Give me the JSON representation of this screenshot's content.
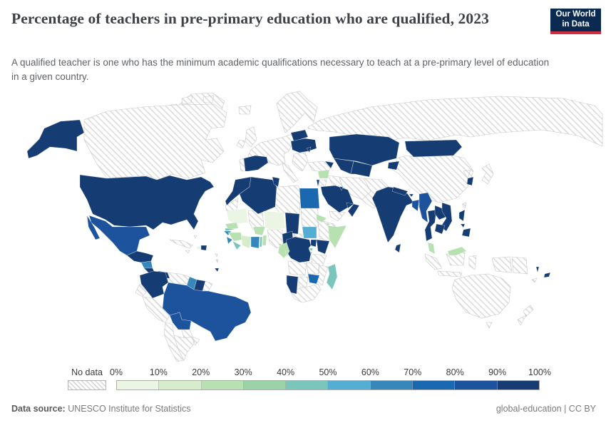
{
  "header": {
    "title": "Percentage of teachers in pre-primary education who are qualified, 2023",
    "subtitle": "A qualified teacher is one who has the minimum academic qualifications necessary to teach at a pre-primary level of education in a given country.",
    "logo": {
      "line1": "Our World",
      "line2": "in Data",
      "bg": "#0b2a52",
      "accent": "#cf2d41"
    }
  },
  "legend": {
    "no_data_label": "No data",
    "tick_labels": [
      "0%",
      "10%",
      "20%",
      "30%",
      "40%",
      "50%",
      "60%",
      "70%",
      "80%",
      "90%",
      "100%"
    ],
    "bands": [
      {
        "range": "0-10%",
        "color": "#eaf5e3"
      },
      {
        "range": "10-20%",
        "color": "#d6ecca"
      },
      {
        "range": "20-30%",
        "color": "#b7e1b1"
      },
      {
        "range": "30-40%",
        "color": "#99d3a7"
      },
      {
        "range": "40-50%",
        "color": "#7bc6bc"
      },
      {
        "range": "50-60%",
        "color": "#54add2"
      },
      {
        "range": "60-70%",
        "color": "#3887ba"
      },
      {
        "range": "70-80%",
        "color": "#1a68b0"
      },
      {
        "range": "80-90%",
        "color": "#1d539c"
      },
      {
        "range": "90-100%",
        "color": "#163d73"
      }
    ]
  },
  "footer": {
    "source_label": "Data source:",
    "source_value": " UNESCO Institute for Statistics",
    "right_text": "global-education | CC BY"
  },
  "chart_data": {
    "type": "heatmap",
    "subtype": "choropleth world map",
    "title": "Percentage of teachers in pre-primary education who are qualified, 2023",
    "unit": "% of pre-primary teachers qualified",
    "year": 2023,
    "scale": {
      "min": 0,
      "max": 100,
      "step": 10
    },
    "no_data_style": "white fill with light gray diagonal hatching",
    "note": "Country values read from map colors as 10-point bands",
    "regions": {
      "United States": "90-100%",
      "Guatemala": "90-100%",
      "Belize": "90-100%",
      "Honduras": "90-100%",
      "El Salvador": "90-100%",
      "Costa Rica": "90-100%",
      "Panama": "90-100%",
      "Dominican Republic": "90-100%",
      "Trinidad and Tobago": "90-100%",
      "Colombia": "90-100%",
      "Suriname": "90-100%",
      "Spain": "90-100%",
      "Ukraine": "90-100%",
      "Belarus": "90-100%",
      "Moldova": "90-100%",
      "Azerbaijan": "90-100%",
      "Israel": "90-100%",
      "Morocco": "90-100%",
      "Algeria": "90-100%",
      "Tunisia": "90-100%",
      "Chad": "90-100%",
      "Cameroon": "90-100%",
      "DR Congo": "90-100%",
      "Uganda": "90-100%",
      "Kenya": "90-100%",
      "Namibia": "90-100%",
      "Saudi Arabia": "90-100%",
      "Oman": "90-100%",
      "United Arab Emirates": "90-100%",
      "Kuwait": "90-100%",
      "Kazakhstan": "90-100%",
      "Uzbekistan": "90-100%",
      "Turkmenistan": "90-100%",
      "Kyrgyzstan": "90-100%",
      "Mongolia": "90-100%",
      "India": "90-100%",
      "Nepal": "90-100%",
      "Bhutan": "90-100%",
      "Sri Lanka": "90-100%",
      "Thailand": "90-100%",
      "Laos": "90-100%",
      "Vietnam": "90-100%",
      "Cambodia": "90-100%",
      "Philippines": "90-100%",
      "South Korea": "90-100%",
      "Fiji": "90-100%",
      "Vanuatu": "90-100%",
      "Mexico": "80-90%",
      "Brazil": "80-90%",
      "Bolivia": "80-90%",
      "Myanmar": "80-90%",
      "Bangladesh": "80-90%",
      "Egypt": "70-80%",
      "Zimbabwe": "70-80%",
      "Ghana": "60-70%",
      "Guyana": "60-70%",
      "Nicaragua": "60-70%",
      "Sierra Leone": "60-70%",
      "Guinea-Bissau": "60-70%",
      "South Sudan": "50-60%",
      "Madagascar": "40-50%",
      "Gambia": "40-50%",
      "Liberia": "40-50%",
      "Togo": "40-50%",
      "Rwanda": "40-50%",
      "Burundi": "40-50%",
      "Senegal": "20-30%",
      "Guinea": "20-30%",
      "Burkina Faso": "20-30%",
      "Benin": "20-30%",
      "Eritrea": "20-30%",
      "Djibouti": "20-30%",
      "Somalia": "20-30%",
      "Syria": "20-30%",
      "Gabon": "20-30%",
      "Republic of the Congo": "20-30%",
      "Equatorial Guinea": "20-30%",
      "Malaysia": "20-30%",
      "Cote d'Ivoire": "10-20%",
      "Niger": "0-10%",
      "Mauritania": "0-10%",
      "Haiti": "0-10%",
      "Canada": "no-data",
      "Greenland": "no-data",
      "Iceland": "no-data",
      "United Kingdom": "no-data",
      "Ireland": "no-data",
      "Scandinavia": "no-data",
      "Mainland Europe": "no-data",
      "Portugal": "no-data",
      "Italy": "no-data",
      "Balkans": "no-data",
      "Turkey": "no-data",
      "Russia": "no-data",
      "Arctic Islands": "no-data",
      "Bahamas": "no-data",
      "Cuba": "no-data",
      "Jamaica": "no-data",
      "Lesser Antilles": "no-data",
      "Venezuela": "no-data",
      "French Guiana": "no-data",
      "Ecuador": "no-data",
      "Peru": "no-data",
      "Chile": "no-data",
      "Argentina": "no-data",
      "Paraguay": "no-data",
      "Uruguay": "no-data",
      "Western Sahara": "no-data",
      "Libya": "no-data",
      "Mali": "no-data",
      "Sudan": "no-data",
      "Nigeria": "no-data",
      "Central African Republic": "no-data",
      "Ethiopia": "no-data",
      "Tanzania": "no-data",
      "Angola": "no-data",
      "Zambia": "no-data",
      "Mozambique": "no-data",
      "Botswana": "no-data",
      "South Africa": "no-data",
      "Jordan": "no-data",
      "Iraq": "no-data",
      "Iran": "no-data",
      "Yemen": "no-data",
      "Afghanistan-Pakistan": "no-data",
      "China": "no-data",
      "North Korea": "no-data",
      "Japan": "no-data",
      "Taiwan": "no-data",
      "Indonesia": "no-data",
      "Papua New Guinea": "no-data",
      "Australia": "no-data",
      "New Zealand": "no-data",
      "New Caledonia": "no-data"
    }
  }
}
